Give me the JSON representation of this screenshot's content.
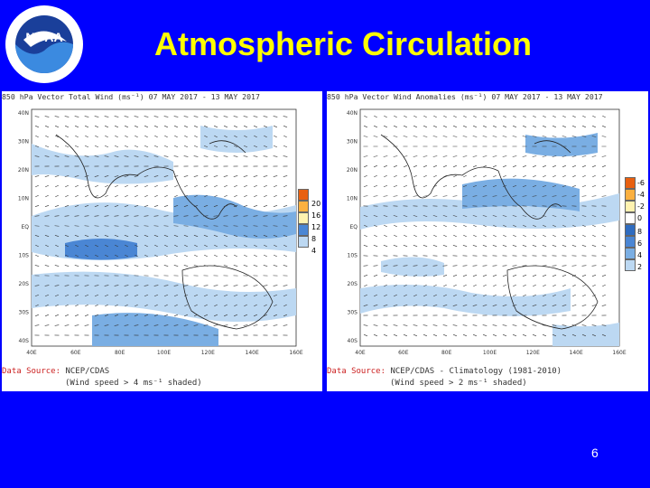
{
  "slide": {
    "title": "Atmospheric Circulation",
    "page_number": "6",
    "logo_text": "NOAA",
    "logo_ring_text": "NATIONAL OCEANIC AND ATMOSPHERIC ADMINISTRATION · U.S. DEPARTMENT OF COMMERCE"
  },
  "panels": [
    {
      "title": "850 hPa Vector Total Wind (ms⁻¹) 07 MAY 2017 - 13 MAY 2017",
      "source_label": "Data Source:",
      "source": " NCEP/CDAS",
      "note": "(Wind speed > 4 ms⁻¹ shaded)",
      "legend": [
        "20",
        "16",
        "12",
        "8",
        "4"
      ],
      "lat_labels": [
        "40N",
        "30N",
        "20N",
        "10N",
        "EQ",
        "10S",
        "20S",
        "30S",
        "40S"
      ],
      "lon_labels": [
        "40E",
        "60E",
        "80E",
        "100E",
        "120E",
        "140E",
        "160E"
      ]
    },
    {
      "title": "850 hPa Vector Wind Anomalies (ms⁻¹) 07 MAY 2017 - 13 MAY 2017",
      "source_label": "Data Source:",
      "source": " NCEP/CDAS - Climatology (1981-2010)",
      "note": "(Wind speed > 2 ms⁻¹ shaded)",
      "legend": [
        "-6",
        "-4",
        "-2",
        "0",
        "8",
        "6",
        "4",
        "2"
      ],
      "lat_labels": [
        "40N",
        "30N",
        "20N",
        "10N",
        "EQ",
        "10S",
        "20S",
        "30S",
        "40S"
      ],
      "lon_labels": [
        "40E",
        "60E",
        "80E",
        "100E",
        "120E",
        "140E",
        "160E"
      ]
    }
  ],
  "colors": {
    "background": "#0000ff",
    "title": "#ffff00",
    "shade_light": "#bcd8f2",
    "shade_mid": "#7aaee3",
    "shade_dark": "#4a86d4"
  }
}
